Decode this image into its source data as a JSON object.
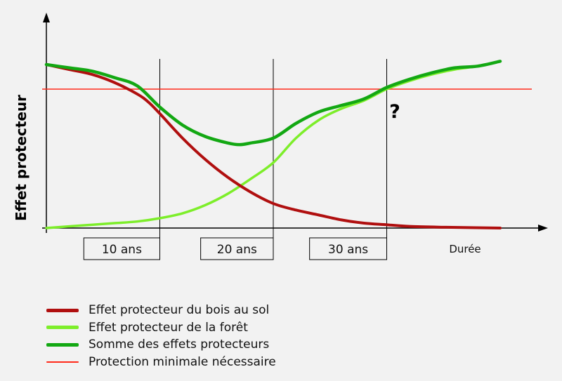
{
  "chart_data": {
    "type": "line",
    "ylabel": "Effet protecteur",
    "xlabel": "Durée",
    "period_labels": [
      "10 ans",
      "20 ans",
      "30 ans"
    ],
    "question_mark": "?",
    "xlim": [
      0,
      40
    ],
    "ylim": [
      0,
      1
    ],
    "period_boundaries": [
      10,
      20,
      30
    ],
    "threshold": 0.85,
    "series": [
      {
        "name": "Effet protecteur du bois au sol",
        "color": "#b00f0f",
        "points": [
          [
            0,
            1.0
          ],
          [
            2,
            0.97
          ],
          [
            4,
            0.94
          ],
          [
            6,
            0.89
          ],
          [
            8,
            0.82
          ],
          [
            9,
            0.77
          ],
          [
            10,
            0.7
          ],
          [
            12,
            0.55
          ],
          [
            14,
            0.42
          ],
          [
            16,
            0.31
          ],
          [
            18,
            0.22
          ],
          [
            20,
            0.15
          ],
          [
            22,
            0.11
          ],
          [
            24,
            0.08
          ],
          [
            26,
            0.05
          ],
          [
            28,
            0.03
          ],
          [
            30,
            0.02
          ],
          [
            32,
            0.01
          ],
          [
            35,
            0.005
          ],
          [
            40,
            0.0
          ]
        ]
      },
      {
        "name": "Effet protecteur de la forêt",
        "color": "#7dee2a",
        "points": [
          [
            0,
            0.0
          ],
          [
            2,
            0.01
          ],
          [
            4,
            0.02
          ],
          [
            6,
            0.03
          ],
          [
            8,
            0.04
          ],
          [
            10,
            0.06
          ],
          [
            12,
            0.09
          ],
          [
            14,
            0.14
          ],
          [
            16,
            0.21
          ],
          [
            18,
            0.3
          ],
          [
            20,
            0.4
          ],
          [
            22,
            0.55
          ],
          [
            24,
            0.66
          ],
          [
            26,
            0.73
          ],
          [
            28,
            0.78
          ],
          [
            30,
            0.85
          ],
          [
            32,
            0.9
          ],
          [
            34,
            0.94
          ],
          [
            36,
            0.97
          ],
          [
            38,
            0.99
          ],
          [
            40,
            1.02
          ]
        ]
      },
      {
        "name": "Somme des effets protecteurs",
        "color": "#13a813",
        "points": [
          [
            0,
            1.0
          ],
          [
            2,
            0.98
          ],
          [
            4,
            0.96
          ],
          [
            6,
            0.92
          ],
          [
            8,
            0.87
          ],
          [
            10,
            0.74
          ],
          [
            12,
            0.63
          ],
          [
            14,
            0.56
          ],
          [
            16,
            0.52
          ],
          [
            17,
            0.51
          ],
          [
            18,
            0.52
          ],
          [
            20,
            0.55
          ],
          [
            22,
            0.64
          ],
          [
            24,
            0.71
          ],
          [
            26,
            0.75
          ],
          [
            28,
            0.79
          ],
          [
            30,
            0.86
          ],
          [
            32,
            0.91
          ],
          [
            34,
            0.95
          ],
          [
            36,
            0.98
          ],
          [
            38,
            0.99
          ],
          [
            40,
            1.02
          ]
        ]
      },
      {
        "name": "Protection minimale nécessaire",
        "color": "#ff2a1a",
        "points": [
          [
            0,
            0.85
          ],
          [
            40,
            0.85
          ]
        ]
      }
    ]
  }
}
